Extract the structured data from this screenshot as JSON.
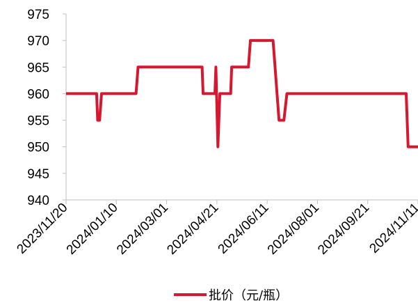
{
  "chart_data": {
    "type": "line",
    "title": "",
    "xlabel": "",
    "ylabel": "",
    "x_ticks": [
      "2023/11/20",
      "2024/01/10",
      "2024/03/01",
      "2024/04/21",
      "2024/06/11",
      "2024/08/01",
      "2024/09/21",
      "2024/11/11"
    ],
    "y_ticks": [
      "940",
      "945",
      "950",
      "955",
      "960",
      "965",
      "970",
      "975"
    ],
    "ylim": [
      940,
      975
    ],
    "xlim": [
      "2023-11-20",
      "2024-11-11"
    ],
    "grid": false,
    "legend_position": "bottom",
    "series": [
      {
        "name": "批价（元/瓶）",
        "color": "#d7172f",
        "points": [
          {
            "x": "2023-11-20",
            "y": 960
          },
          {
            "x": "2023-12-21",
            "y": 960
          },
          {
            "x": "2023-12-22",
            "y": 955
          },
          {
            "x": "2023-12-24",
            "y": 955
          },
          {
            "x": "2023-12-26",
            "y": 960
          },
          {
            "x": "2024-01-30",
            "y": 960
          },
          {
            "x": "2024-02-01",
            "y": 965
          },
          {
            "x": "2024-04-06",
            "y": 965
          },
          {
            "x": "2024-04-07",
            "y": 960
          },
          {
            "x": "2024-04-19",
            "y": 960
          },
          {
            "x": "2024-04-20",
            "y": 965
          },
          {
            "x": "2024-04-22",
            "y": 950
          },
          {
            "x": "2024-04-24",
            "y": 960
          },
          {
            "x": "2024-05-05",
            "y": 960
          },
          {
            "x": "2024-05-06",
            "y": 965
          },
          {
            "x": "2024-05-23",
            "y": 965
          },
          {
            "x": "2024-05-25",
            "y": 970
          },
          {
            "x": "2024-06-17",
            "y": 970
          },
          {
            "x": "2024-06-19",
            "y": 965
          },
          {
            "x": "2024-06-21",
            "y": 960
          },
          {
            "x": "2024-06-23",
            "y": 955
          },
          {
            "x": "2024-06-28",
            "y": 955
          },
          {
            "x": "2024-07-01",
            "y": 960
          },
          {
            "x": "2024-10-30",
            "y": 960
          },
          {
            "x": "2024-11-01",
            "y": 950
          },
          {
            "x": "2024-11-11",
            "y": 950
          }
        ]
      }
    ]
  }
}
